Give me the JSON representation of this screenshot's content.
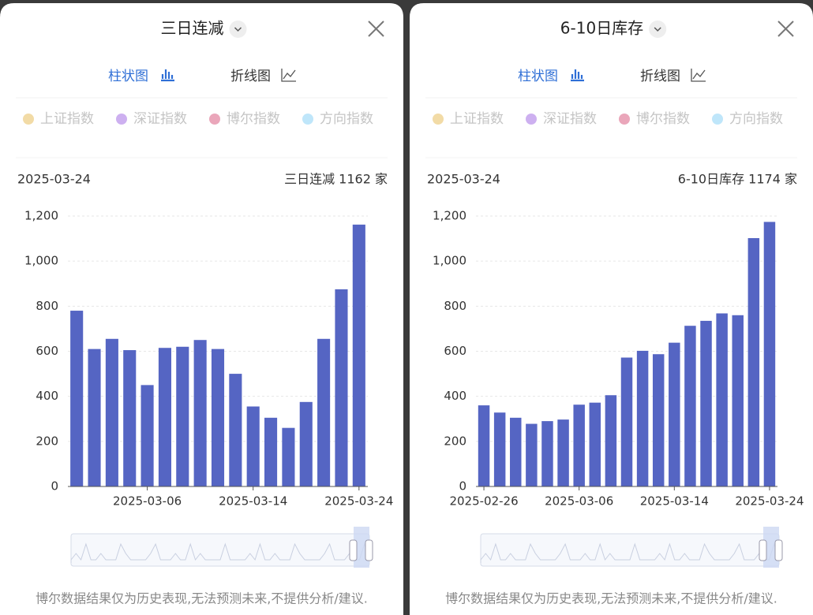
{
  "panels": [
    {
      "title": "三日连减",
      "tabs": [
        "柱状图",
        "折线图"
      ],
      "legend": [
        "上证指数",
        "深证指数",
        "博尔指数",
        "方向指数"
      ],
      "date": "2025-03-24",
      "summary": "三日连减 1162 家",
      "footer": "博尔数据结果仅为历史表现,无法预测未来,不提供分析/建议."
    },
    {
      "title": "6-10日库存",
      "tabs": [
        "柱状图",
        "折线图"
      ],
      "legend": [
        "上证指数",
        "深证指数",
        "博尔指数",
        "方向指数"
      ],
      "date": "2025-03-24",
      "summary": "6-10日库存 1174 家",
      "footer": "博尔数据结果仅为历史表现,无法预测未来,不提供分析/建议."
    }
  ],
  "legend_colors": [
    "#f2dba6",
    "#cdb0f0",
    "#eaa6ba",
    "#bfe6fa"
  ],
  "chart_data": [
    {
      "type": "bar",
      "color": "#5565c3",
      "categories": [
        null,
        null,
        null,
        null,
        "2025-03-06",
        null,
        null,
        null,
        null,
        null,
        "2025-03-14",
        null,
        null,
        null,
        null,
        null,
        "2025-03-24"
      ],
      "values": [
        780,
        610,
        655,
        605,
        450,
        615,
        620,
        650,
        610,
        500,
        355,
        305,
        260,
        375,
        655,
        875,
        1162
      ],
      "ylim": [
        0,
        1200
      ],
      "yticks": [
        0,
        200,
        400,
        600,
        800,
        {
          "value": 1000,
          "label": "1,000"
        },
        {
          "value": 1200,
          "label": "1,200"
        }
      ],
      "grid": true
    },
    {
      "type": "bar",
      "color": "#5565c3",
      "categories": [
        "2025-02-26",
        null,
        null,
        null,
        null,
        null,
        "2025-03-06",
        null,
        null,
        null,
        null,
        null,
        "2025-03-14",
        null,
        null,
        null,
        null,
        null,
        "2025-03-24"
      ],
      "values": [
        360,
        328,
        305,
        278,
        290,
        297,
        363,
        372,
        405,
        572,
        602,
        587,
        638,
        713,
        735,
        768,
        760,
        1102,
        1174
      ],
      "ylim": [
        0,
        1200
      ],
      "yticks": [
        0,
        200,
        400,
        600,
        800,
        {
          "value": 1000,
          "label": "1,000"
        },
        {
          "value": 1200,
          "label": "1,200"
        }
      ],
      "grid": true
    }
  ]
}
